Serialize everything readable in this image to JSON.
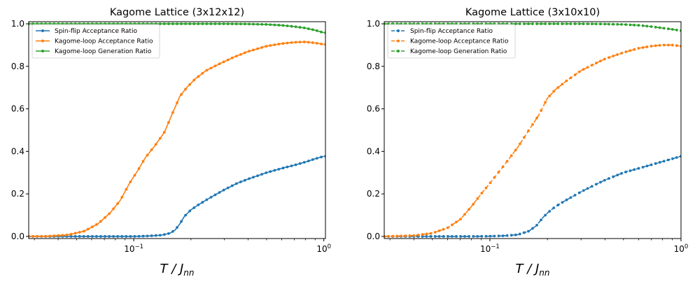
{
  "chart_data": [
    {
      "type": "line",
      "title": "Kagome Lattice (3x12x12)",
      "xlabel": "T / J_nn",
      "xscale": "log",
      "xlim": [
        0.028,
        1.02
      ],
      "ylim": [
        -0.01,
        1.01
      ],
      "xticks": [
        {
          "value": 0.1,
          "base": "10",
          "exp": "−1"
        },
        {
          "value": 1.0,
          "base": "10",
          "exp": "0"
        }
      ],
      "yticks": [
        "0.0",
        "0.2",
        "0.4",
        "0.6",
        "0.8",
        "1.0"
      ],
      "legend": "top-left",
      "series": [
        {
          "name": "Spin-flip Acceptance Ratio",
          "color": "#1f77b4",
          "dashed": false,
          "x": [
            0.028,
            0.05,
            0.08,
            0.1,
            0.12,
            0.14,
            0.155,
            0.165,
            0.175,
            0.185,
            0.2,
            0.22,
            0.25,
            0.3,
            0.35,
            0.4,
            0.5,
            0.6,
            0.7,
            0.8,
            0.9,
            1.0
          ],
          "y": [
            0.0,
            0.0,
            0.0,
            0.0,
            0.002,
            0.006,
            0.015,
            0.03,
            0.06,
            0.095,
            0.125,
            0.15,
            0.18,
            0.22,
            0.25,
            0.27,
            0.3,
            0.32,
            0.335,
            0.35,
            0.365,
            0.377
          ]
        },
        {
          "name": "Kagome-loop Acceptance Ratio",
          "color": "#ff7f0e",
          "dashed": false,
          "x": [
            0.028,
            0.035,
            0.045,
            0.055,
            0.065,
            0.075,
            0.085,
            0.095,
            0.105,
            0.115,
            0.13,
            0.145,
            0.16,
            0.175,
            0.19,
            0.21,
            0.24,
            0.28,
            0.33,
            0.4,
            0.5,
            0.6,
            0.7,
            0.8,
            0.9,
            1.0
          ],
          "y": [
            0.0,
            0.001,
            0.007,
            0.025,
            0.06,
            0.11,
            0.17,
            0.25,
            0.31,
            0.37,
            0.43,
            0.49,
            0.58,
            0.66,
            0.7,
            0.74,
            0.78,
            0.81,
            0.84,
            0.87,
            0.895,
            0.907,
            0.913,
            0.915,
            0.91,
            0.903
          ]
        },
        {
          "name": "Kagome-loop Generation Ratio",
          "color": "#2ca02c",
          "dashed": false,
          "x": [
            0.028,
            0.1,
            0.2,
            0.3,
            0.4,
            0.5,
            0.6,
            0.7,
            0.8,
            0.9,
            1.0
          ],
          "y": [
            1.0,
            1.0,
            1.0,
            1.0,
            0.999,
            0.997,
            0.993,
            0.987,
            0.98,
            0.97,
            0.958
          ]
        }
      ]
    },
    {
      "type": "line",
      "title": "Kagome Lattice (3x10x10)",
      "xlabel": "T / J_nn",
      "xscale": "log",
      "xlim": [
        0.028,
        1.0
      ],
      "ylim": [
        -0.01,
        1.01
      ],
      "xticks": [
        {
          "value": 0.1,
          "base": "10",
          "exp": "−1"
        },
        {
          "value": 1.0,
          "base": "10",
          "exp": "0"
        }
      ],
      "yticks": [
        "0.0",
        "0.2",
        "0.4",
        "0.6",
        "0.8",
        "1.0"
      ],
      "legend": "top-left",
      "series": [
        {
          "name": "Spin-flip Acceptance Ratio",
          "color": "#1f77b4",
          "dashed": true,
          "x": [
            0.028,
            0.05,
            0.08,
            0.1,
            0.12,
            0.14,
            0.16,
            0.175,
            0.19,
            0.2,
            0.22,
            0.25,
            0.3,
            0.35,
            0.4,
            0.5,
            0.6,
            0.7,
            0.8,
            0.9,
            1.0
          ],
          "y": [
            0.0,
            0.0,
            0.0,
            0.001,
            0.003,
            0.008,
            0.025,
            0.05,
            0.09,
            0.11,
            0.14,
            0.17,
            0.21,
            0.24,
            0.265,
            0.3,
            0.32,
            0.337,
            0.352,
            0.365,
            0.377
          ]
        },
        {
          "name": "Kagome-loop Acceptance Ratio",
          "color": "#ff7f0e",
          "dashed": true,
          "x": [
            0.028,
            0.04,
            0.05,
            0.06,
            0.07,
            0.08,
            0.09,
            0.1,
            0.12,
            0.14,
            0.16,
            0.18,
            0.2,
            0.22,
            0.25,
            0.3,
            0.35,
            0.4,
            0.5,
            0.6,
            0.7,
            0.8,
            0.9,
            1.0
          ],
          "y": [
            0.0,
            0.004,
            0.015,
            0.04,
            0.08,
            0.14,
            0.2,
            0.25,
            0.34,
            0.42,
            0.5,
            0.57,
            0.65,
            0.69,
            0.73,
            0.78,
            0.81,
            0.835,
            0.865,
            0.885,
            0.895,
            0.9,
            0.9,
            0.895
          ]
        },
        {
          "name": "Kagome-loop Generation Ratio",
          "color": "#2ca02c",
          "dashed": true,
          "x": [
            0.028,
            0.1,
            0.2,
            0.3,
            0.4,
            0.5,
            0.6,
            0.7,
            0.8,
            0.9,
            1.0
          ],
          "y": [
            1.0,
            1.0,
            1.0,
            1.0,
            0.999,
            0.997,
            0.993,
            0.987,
            0.98,
            0.974,
            0.968
          ]
        }
      ]
    }
  ]
}
